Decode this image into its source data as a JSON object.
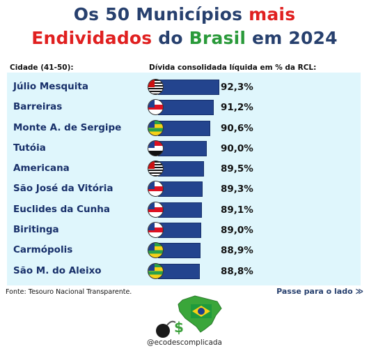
{
  "header": {
    "title_line1_a": "Os 50 Municípios ",
    "title_line1_b": "mais",
    "title_line2_a": "Endividados",
    "title_line2_b": " do ",
    "title_line2_c": "Brasil",
    "title_line2_d": " em 2024",
    "col_city": "Cidade (41-50):",
    "col_value": "Dívida consolidada líquida em % da RCL:"
  },
  "chart_data": {
    "type": "bar",
    "orientation": "horizontal",
    "categories": [
      "Júlio Mesquita",
      "Barreiras",
      "Monte A. de Sergipe",
      "Tutóia",
      "Americana",
      "São José da Vitória",
      "Euclides da Cunha",
      "Biritinga",
      "Carmópolis",
      "São M. do Aleixo"
    ],
    "values": [
      92.3,
      91.2,
      90.6,
      90.0,
      89.5,
      89.3,
      89.1,
      89.0,
      88.9,
      88.8
    ],
    "value_labels": [
      "92,3%",
      "91,2%",
      "90,6%",
      "90,0%",
      "89,5%",
      "89,3%",
      "89,1%",
      "89,0%",
      "88,9%",
      "88,8%"
    ],
    "flags": [
      "sp",
      "ba",
      "se",
      "ma",
      "sp",
      "ba",
      "ba",
      "ba",
      "se",
      "se"
    ],
    "bar_color": "#23448e"
  },
  "footer": {
    "source": "Fonte: Tesouro Nacional Transparente.",
    "next": "Passe para o lado ≫",
    "handle": "@ecodescomplicada"
  }
}
